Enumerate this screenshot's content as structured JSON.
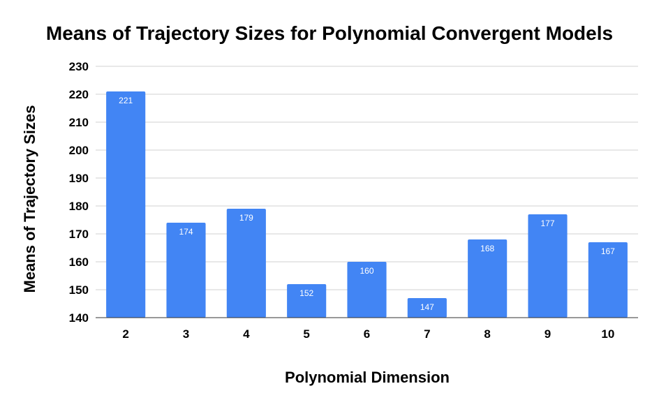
{
  "chart_data": {
    "type": "bar",
    "title": "Means of Trajectory Sizes for Polynomial Convergent Models",
    "xlabel": "Polynomial Dimension",
    "ylabel": "Means of Trajectory Sizes",
    "categories": [
      "2",
      "3",
      "4",
      "5",
      "6",
      "7",
      "8",
      "9",
      "10"
    ],
    "values": [
      221,
      174,
      179,
      152,
      160,
      147,
      168,
      177,
      167
    ],
    "data_labels": [
      "221",
      "174",
      "179",
      "152",
      "160",
      "147",
      "168",
      "177",
      "167"
    ],
    "ylim": [
      140,
      230
    ],
    "yticks": [
      "140",
      "150",
      "160",
      "170",
      "180",
      "190",
      "200",
      "210",
      "220",
      "230"
    ],
    "grid": true,
    "legend": "none",
    "bar_color": "#4285f4"
  }
}
